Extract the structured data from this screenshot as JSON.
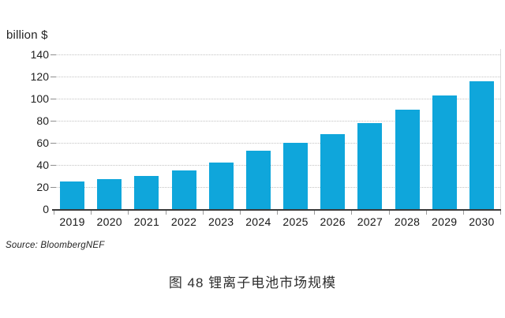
{
  "chart_data": {
    "type": "bar",
    "title": "图 48 锂离子电池市场规模",
    "unit_label": "billion $",
    "source": "Source: BloombergNEF",
    "categories": [
      "2019",
      "2020",
      "2021",
      "2022",
      "2023",
      "2024",
      "2025",
      "2026",
      "2027",
      "2028",
      "2029",
      "2030"
    ],
    "values": [
      25,
      27,
      30,
      35,
      42,
      53,
      60,
      68,
      78,
      90,
      103,
      116
    ],
    "yticks": [
      0,
      20,
      40,
      60,
      80,
      100,
      120,
      140
    ],
    "ylim": [
      0,
      140
    ],
    "xlabel": "",
    "ylabel": "billion $",
    "grid": "horizontal-dotted",
    "legend": "none",
    "bar_color": "#0fa6db",
    "axis_line_color": "#3b3b3b",
    "gridline_color": "#c3c3c3",
    "text_color": "#1e1e1e"
  }
}
